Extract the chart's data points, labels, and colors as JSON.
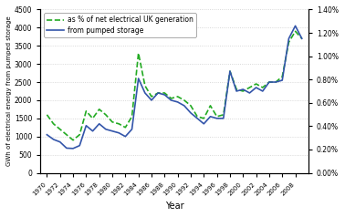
{
  "years": [
    1970,
    1971,
    1972,
    1973,
    1974,
    1975,
    1976,
    1977,
    1978,
    1979,
    1980,
    1981,
    1982,
    1983,
    1984,
    1985,
    1986,
    1987,
    1988,
    1989,
    1990,
    1991,
    1992,
    1993,
    1994,
    1995,
    1996,
    1997,
    1998,
    1999,
    2000,
    2001,
    2002,
    2003,
    2004,
    2005,
    2006,
    2007,
    2008,
    2009
  ],
  "pumped_storage_gwh": [
    1050,
    920,
    850,
    680,
    670,
    750,
    1300,
    1150,
    1350,
    1200,
    1150,
    1100,
    1000,
    1200,
    2600,
    2200,
    2000,
    2200,
    2150,
    2000,
    1950,
    1850,
    1650,
    1500,
    1350,
    1550,
    1500,
    1500,
    2800,
    2250,
    2300,
    2200,
    2350,
    2250,
    2500,
    2500,
    2550,
    3700,
    4050,
    3700
  ],
  "pct_net_generation_gwh": [
    1600,
    1350,
    1200,
    1050,
    900,
    1050,
    1700,
    1500,
    1750,
    1600,
    1400,
    1350,
    1250,
    1550,
    3300,
    2400,
    2100,
    2200,
    2200,
    2050,
    2100,
    2000,
    1850,
    1550,
    1500,
    1850,
    1550,
    1600,
    2800,
    2300,
    2250,
    2350,
    2450,
    2350,
    2500,
    2500,
    2650,
    3600,
    3900,
    3700
  ],
  "color_pumped": "#3355aa",
  "color_pct": "#22aa22",
  "ylabel_left": "GWh of electrical energy from pumped storage",
  "xlabel": "Year",
  "ylim_left": [
    0,
    4500
  ],
  "yticks_left": [
    0,
    500,
    1000,
    1500,
    2000,
    2500,
    3000,
    3500,
    4000,
    4500
  ],
  "right_tick_pcts": [
    0.0,
    0.2,
    0.4,
    0.6,
    0.8,
    1.0,
    1.2,
    1.4
  ],
  "legend_label_pct": "as % of net electrical UK generation",
  "legend_label_pumped": "from pumped storage",
  "grid_color": "#cccccc"
}
